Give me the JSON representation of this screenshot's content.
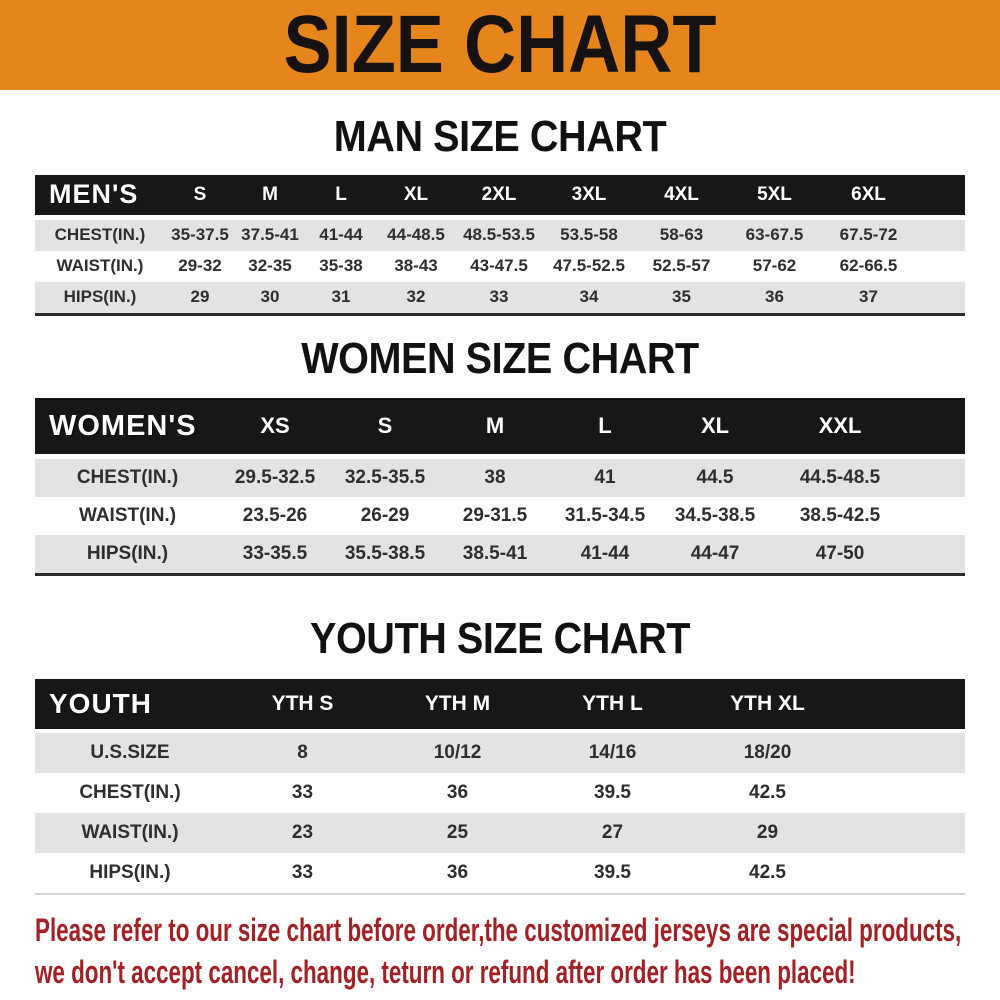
{
  "banner": {
    "title": "SIZE CHART"
  },
  "sections": [
    {
      "heading": "MAN SIZE CHART",
      "label": "MEN'S",
      "cols": [
        "S",
        "M",
        "L",
        "XL",
        "2XL",
        "3XL",
        "4XL",
        "5XL",
        "6XL"
      ],
      "rows": [
        {
          "label": "CHEST(IN.)",
          "values": [
            "35-37.5",
            "37.5-41",
            "41-44",
            "44-48.5",
            "48.5-53.5",
            "53.5-58",
            "58-63",
            "63-67.5",
            "67.5-72"
          ]
        },
        {
          "label": "WAIST(IN.)",
          "values": [
            "29-32",
            "32-35",
            "35-38",
            "38-43",
            "43-47.5",
            "47.5-52.5",
            "52.5-57",
            "57-62",
            "62-66.5"
          ]
        },
        {
          "label": "HIPS(IN.)",
          "values": [
            "29",
            "30",
            "31",
            "32",
            "33",
            "34",
            "35",
            "36",
            "37"
          ]
        }
      ]
    },
    {
      "heading": "WOMEN SIZE CHART",
      "label": "WOMEN'S",
      "cols": [
        "XS",
        "S",
        "M",
        "L",
        "XL",
        "XXL"
      ],
      "rows": [
        {
          "label": "CHEST(IN.)",
          "values": [
            "29.5-32.5",
            "32.5-35.5",
            "38",
            "41",
            "44.5",
            "44.5-48.5"
          ]
        },
        {
          "label": "WAIST(IN.)",
          "values": [
            "23.5-26",
            "26-29",
            "29-31.5",
            "31.5-34.5",
            "34.5-38.5",
            "38.5-42.5"
          ]
        },
        {
          "label": "HIPS(IN.)",
          "values": [
            "33-35.5",
            "35.5-38.5",
            "38.5-41",
            "41-44",
            "44-47",
            "47-50"
          ]
        }
      ]
    },
    {
      "heading": "YOUTH SIZE CHART",
      "label": "YOUTH",
      "cols": [
        "YTH S",
        "YTH M",
        "YTH L",
        "YTH XL"
      ],
      "rows": [
        {
          "label": "U.S.SIZE",
          "values": [
            "8",
            "10/12",
            "14/16",
            "18/20"
          ]
        },
        {
          "label": "CHEST(IN.)",
          "values": [
            "33",
            "36",
            "39.5",
            "42.5"
          ]
        },
        {
          "label": "WAIST(IN.)",
          "values": [
            "23",
            "25",
            "27",
            "29"
          ]
        },
        {
          "label": "HIPS(IN.)",
          "values": [
            "33",
            "36",
            "39.5",
            "42.5"
          ]
        }
      ]
    }
  ],
  "footer": {
    "lines": [
      "Please refer to our size chart before order,the customized jerseys are special products,",
      "we don't accept cancel, change, teturn or refund after order has been placed!"
    ]
  },
  "colors": {
    "banner_bg": "#E6851C",
    "banner_text": "#161212",
    "header_bg": "#191616",
    "header_text": "#FFFFFF",
    "stripe_bg": "#E3E3E1",
    "row_text": "#2E2E2E",
    "heading_text": "#111111",
    "footer_text": "#A32025",
    "table_border": "#2B2B2B"
  }
}
